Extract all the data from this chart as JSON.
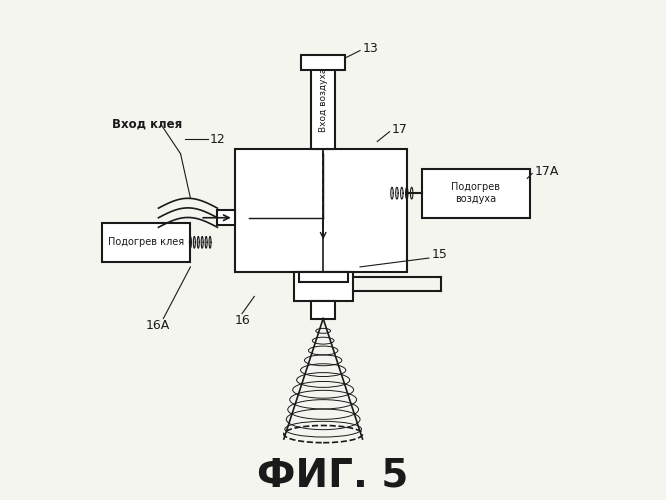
{
  "title": "ФИГ. 5",
  "title_fontsize": 28,
  "background_color": "#f5f5f0",
  "line_color": "#1a1a1a",
  "label_13": "13",
  "label_12": "12",
  "label_15": "15",
  "label_16": "16",
  "label_16A": "16А",
  "label_17": "17",
  "label_17A": "17А",
  "text_vhod_kleya": "Вход клея",
  "text_vhod_vozduha": "Вход воздуха",
  "text_podogrev_kleya": "Подогрев клея",
  "text_podogrev_vozduha": "Подогрев\nвоздуха"
}
